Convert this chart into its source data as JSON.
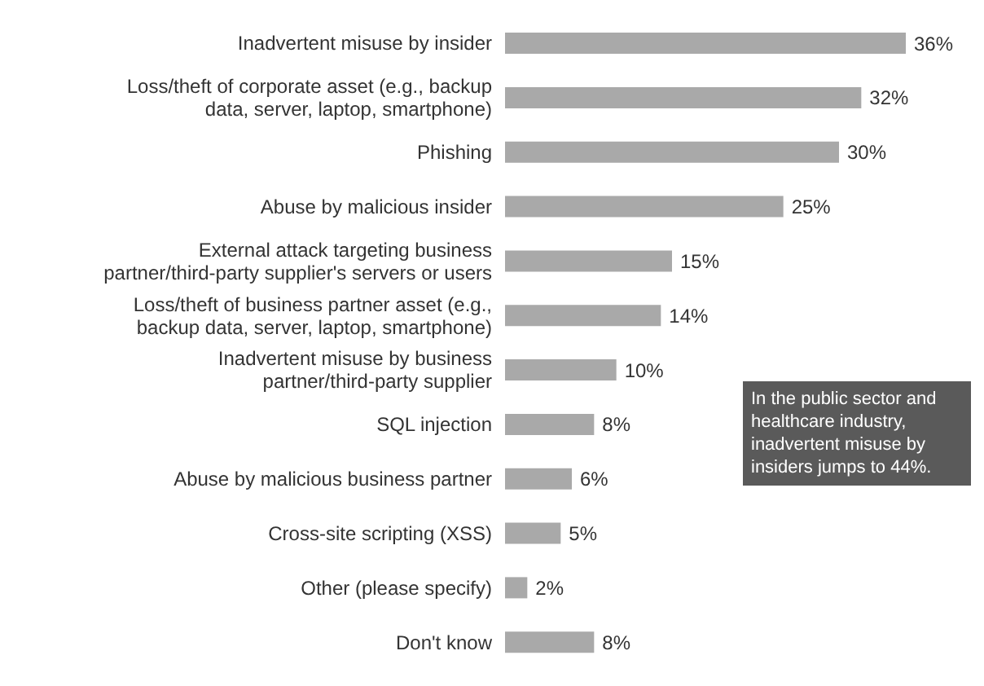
{
  "chart_data": {
    "type": "bar",
    "orientation": "horizontal",
    "categories": [
      "Inadvertent misuse by insider",
      "Loss/theft of corporate asset (e.g., backup data, server, laptop, smartphone)",
      "Phishing",
      "Abuse by malicious insider",
      "External attack targeting business partner/third-party supplier's servers or users",
      "Loss/theft of business partner asset (e.g., backup data, server, laptop, smartphone)",
      "Inadvertent misuse by business partner/third-party supplier",
      "SQL injection",
      "Abuse by malicious business partner",
      "Cross-site scripting (XSS)",
      "Other (please specify)",
      "Don't know"
    ],
    "values": [
      36,
      32,
      30,
      25,
      15,
      14,
      10,
      8,
      6,
      5,
      2,
      8
    ],
    "value_labels": [
      "36%",
      "32%",
      "30%",
      "25%",
      "15%",
      "14%",
      "10%",
      "8%",
      "6%",
      "5%",
      "2%",
      "8%"
    ],
    "color": "#a9a9a9",
    "annotations": [
      "In the public sector and healthcare industry, inadvertent misuse by insiders jumps to 44%."
    ]
  }
}
